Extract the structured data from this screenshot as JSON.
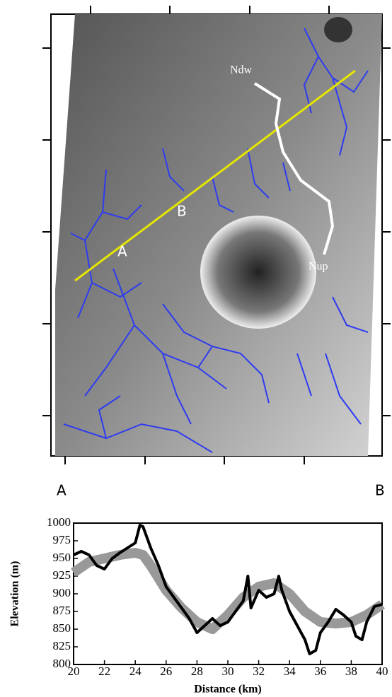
{
  "chart_data": {
    "type": "line",
    "x_label": "Distance (km)",
    "y_label": "Elevation (m)",
    "xlim": [
      20,
      40
    ],
    "ylim": [
      800,
      1000
    ],
    "xticks": [
      20,
      22,
      24,
      26,
      28,
      30,
      32,
      34,
      36,
      38,
      40
    ],
    "yticks": [
      800,
      825,
      850,
      875,
      900,
      925,
      950,
      975,
      1000
    ],
    "profile_ends": [
      "A",
      "B"
    ],
    "map_labels": [
      "Ndw",
      "Nup",
      "A",
      "B"
    ],
    "series": [
      {
        "color": "#999999",
        "width": 14,
        "x": [
          20,
          21,
          22,
          23,
          24,
          24.5,
          25,
          26,
          27,
          28,
          29,
          30,
          31,
          32,
          33,
          34,
          35,
          36,
          37,
          38,
          39,
          40
        ],
        "values": [
          930,
          945,
          950,
          955,
          958,
          955,
          940,
          905,
          880,
          860,
          850,
          870,
          895,
          910,
          915,
          900,
          875,
          860,
          858,
          860,
          870,
          885
        ]
      },
      {
        "color": "#000000",
        "width": 4,
        "x": [
          20,
          20.5,
          21,
          21.5,
          22,
          22.5,
          23,
          23.5,
          24,
          24.3,
          24.5,
          25,
          25.5,
          26,
          26.5,
          27,
          27.5,
          28,
          28.5,
          29,
          29.5,
          30,
          30.5,
          31,
          31.3,
          31.5,
          32,
          32.5,
          33,
          33.3,
          33.5,
          34,
          34.5,
          35,
          35.3,
          35.7,
          36,
          36.5,
          37,
          37.5,
          38,
          38.3,
          38.7,
          39,
          39.5,
          40
        ],
        "values": [
          955,
          960,
          955,
          940,
          935,
          950,
          958,
          965,
          972,
          997,
          995,
          965,
          940,
          910,
          895,
          880,
          865,
          845,
          855,
          865,
          855,
          860,
          875,
          890,
          925,
          880,
          905,
          895,
          900,
          925,
          905,
          875,
          855,
          835,
          815,
          820,
          845,
          860,
          878,
          870,
          860,
          840,
          835,
          860,
          882,
          885
        ]
      }
    ]
  }
}
